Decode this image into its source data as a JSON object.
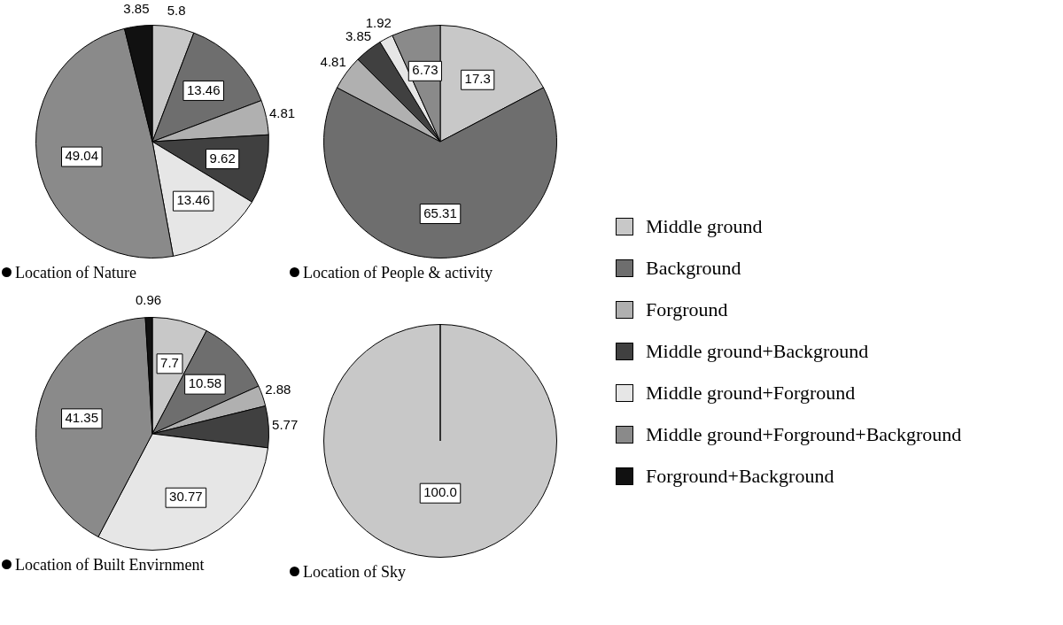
{
  "chart_data": [
    {
      "type": "pie",
      "title": "Location of Nature",
      "legend": "right",
      "categories": [
        "Middle ground",
        "Background",
        "Forground",
        "Middle ground+Background",
        "Middle ground+Forground",
        "Middle ground+Forground+Background",
        "Forground+Background"
      ],
      "values": [
        5.8,
        13.46,
        4.81,
        9.62,
        13.46,
        49.04,
        3.85
      ],
      "value_labels": [
        "5.8",
        "13.46",
        "4.81",
        "9.62",
        "13.46",
        "49.04",
        "3.85"
      ],
      "colors": [
        "#c8c8c8",
        "#6e6e6e",
        "#b0b0b0",
        "#404040",
        "#e6e6e6",
        "#8a8a8a",
        "#111111"
      ]
    },
    {
      "type": "pie",
      "title": "Location of People & activity",
      "categories": [
        null,
        null,
        null,
        null,
        null,
        null
      ],
      "values": [
        17.3,
        65.31,
        4.81,
        3.85,
        1.92,
        6.73
      ],
      "value_labels": [
        "17.3",
        "65.31",
        "4.81",
        "3.85",
        "1.92",
        "6.73"
      ],
      "colors": [
        "#c8c8c8",
        "#6e6e6e",
        "#b0b0b0",
        "#404040",
        "#e6e6e6",
        "#8a8a8a"
      ]
    },
    {
      "type": "pie",
      "title": "Location of Built Envirnment",
      "categories": [
        null,
        null,
        null,
        null,
        null,
        null,
        null
      ],
      "values": [
        7.7,
        10.58,
        2.88,
        5.77,
        30.77,
        41.35,
        0.96
      ],
      "value_labels": [
        "7.7",
        "10.58",
        "2.88",
        "5.77",
        "30.77",
        "41.35",
        "0.96"
      ],
      "colors": [
        "#c8c8c8",
        "#6e6e6e",
        "#b0b0b0",
        "#404040",
        "#e6e6e6",
        "#8a8a8a",
        "#111111"
      ]
    },
    {
      "type": "pie",
      "title": "Location of Sky",
      "categories": [
        null
      ],
      "values": [
        100
      ],
      "value_labels": [
        "100.0"
      ],
      "colors": [
        "#c8c8c8"
      ]
    }
  ]
}
